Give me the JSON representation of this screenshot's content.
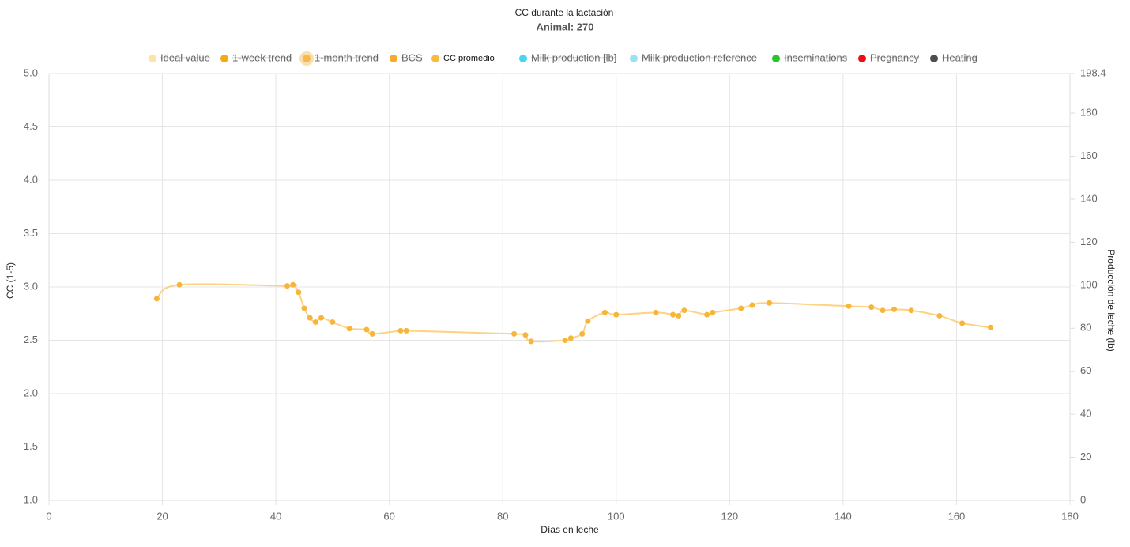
{
  "chart_data": {
    "type": "line",
    "title": "CC durante la lactación",
    "subtitle": "Animal: 270",
    "x_label": "Días en leche",
    "y_label": "CC  (1-5)",
    "y2_label": "Producción de leche (lb)",
    "xlim": [
      0,
      180
    ],
    "xticks": [
      0,
      20,
      40,
      60,
      80,
      100,
      120,
      140,
      160,
      180
    ],
    "ylim": [
      1.0,
      5.0
    ],
    "yticks": [
      {
        "value": 1,
        "label": "1.0"
      },
      1.5,
      {
        "value": 2,
        "label": "2.0"
      },
      2.5,
      {
        "value": 3,
        "label": "3.0"
      },
      3.5,
      {
        "value": 4,
        "label": "4.0"
      },
      4.5,
      {
        "value": 5,
        "label": "5.0"
      }
    ],
    "y2lim": [
      0,
      198.4
    ],
    "y2ticks": [
      0,
      20,
      40,
      60,
      80,
      100,
      120,
      140,
      160,
      180,
      198.4
    ],
    "grid": true,
    "series": [
      {
        "name": "Ideal value",
        "color": "#fde3a7",
        "hidden": true
      },
      {
        "name": "1-week trend",
        "color": "#f5a700",
        "hidden": true
      },
      {
        "name": "1-month trend",
        "color": "#f7b54a",
        "hidden": true
      },
      {
        "name": "BCS",
        "color": "#f5a623",
        "hidden": true
      },
      {
        "name": "CC promedio",
        "color": "#f7b53a",
        "line_color": "#fdd281",
        "x": [
          19,
          23,
          42,
          43,
          44,
          45,
          46,
          47,
          48,
          50,
          53,
          56,
          57,
          62,
          63,
          82,
          84,
          85,
          91,
          92,
          94,
          95,
          98,
          100,
          107,
          110,
          111,
          112,
          116,
          117,
          122,
          124,
          127,
          141,
          145,
          147,
          149,
          152,
          157,
          161,
          166
        ],
        "values": [
          2.89,
          3.02,
          3.01,
          3.02,
          2.95,
          2.8,
          2.71,
          2.67,
          2.71,
          2.67,
          2.61,
          2.6,
          2.56,
          2.59,
          2.59,
          2.56,
          2.55,
          2.49,
          2.5,
          2.52,
          2.56,
          2.68,
          2.76,
          2.74,
          2.76,
          2.74,
          2.73,
          2.78,
          2.74,
          2.76,
          2.8,
          2.83,
          2.85,
          2.82,
          2.81,
          2.78,
          2.79,
          2.78,
          2.73,
          2.66,
          2.62
        ]
      },
      {
        "name": "Milk production [lb]",
        "color": "#3fd2f2",
        "hidden": true,
        "axis": "y2"
      },
      {
        "name": "Milk production reference",
        "color": "#91e2f6",
        "hidden": true,
        "axis": "y2"
      },
      {
        "name": "Inseminations",
        "color": "#1ec31e",
        "hidden": true
      },
      {
        "name": "Pregnancy",
        "color": "#f00000",
        "hidden": true
      },
      {
        "name": "Heating",
        "color": "#444444",
        "hidden": true
      }
    ]
  }
}
